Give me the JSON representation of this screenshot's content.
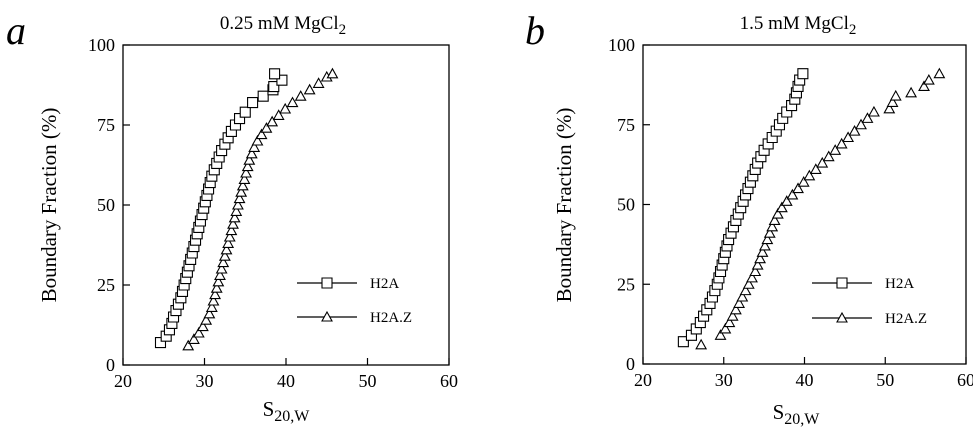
{
  "chart_data": [
    {
      "type": "scatter",
      "panel_letter": "a",
      "title": "0.25 mM MgCl2",
      "title_main": "0.25 mM MgCl",
      "title_sub": "2",
      "xlabel": "S20,W",
      "xlabel_main": "S",
      "xlabel_sub": "20,W",
      "ylabel": "Boundary Fraction (%)",
      "xlim": [
        20,
        60
      ],
      "ylim": [
        0,
        100
      ],
      "x_ticks": [
        20,
        30,
        40,
        50,
        60
      ],
      "y_ticks": [
        0,
        25,
        50,
        75,
        100
      ],
      "x_tick_labels": [
        "20",
        "30",
        "40",
        "50",
        "60"
      ],
      "y_tick_labels": [
        "0",
        "25",
        "50",
        "75",
        "100"
      ],
      "grid": false,
      "legend_position": "bottom-right",
      "series": [
        {
          "name": "H2A",
          "marker": "square",
          "points": [
            [
              24.6,
              7
            ],
            [
              25.3,
              9
            ],
            [
              25.7,
              11
            ],
            [
              26.0,
              13
            ],
            [
              26.2,
              15
            ],
            [
              26.5,
              17
            ],
            [
              26.8,
              19
            ],
            [
              27.1,
              21
            ],
            [
              27.3,
              23
            ],
            [
              27.5,
              25
            ],
            [
              27.7,
              27
            ],
            [
              27.9,
              29
            ],
            [
              28.1,
              31
            ],
            [
              28.3,
              33
            ],
            [
              28.5,
              35
            ],
            [
              28.7,
              37
            ],
            [
              28.9,
              39
            ],
            [
              29.1,
              41
            ],
            [
              29.3,
              43
            ],
            [
              29.5,
              45
            ],
            [
              29.7,
              47
            ],
            [
              29.9,
              49
            ],
            [
              30.1,
              51
            ],
            [
              30.3,
              53
            ],
            [
              30.5,
              55
            ],
            [
              30.7,
              57
            ],
            [
              30.9,
              59
            ],
            [
              31.2,
              61
            ],
            [
              31.5,
              63
            ],
            [
              31.8,
              65
            ],
            [
              32.1,
              67
            ],
            [
              32.5,
              69
            ],
            [
              32.9,
              71
            ],
            [
              33.3,
              73
            ],
            [
              33.8,
              75
            ],
            [
              34.3,
              77
            ],
            [
              35.0,
              79
            ],
            [
              35.9,
              82
            ],
            [
              37.2,
              84
            ],
            [
              38.4,
              86
            ],
            [
              38.5,
              87
            ],
            [
              39.5,
              89
            ],
            [
              38.6,
              91
            ]
          ]
        },
        {
          "name": "H2A.Z",
          "marker": "triangle",
          "points": [
            [
              28.0,
              6
            ],
            [
              28.7,
              8
            ],
            [
              29.3,
              10
            ],
            [
              29.8,
              12
            ],
            [
              30.2,
              14
            ],
            [
              30.6,
              16
            ],
            [
              30.9,
              18
            ],
            [
              31.1,
              20
            ],
            [
              31.3,
              22
            ],
            [
              31.5,
              24
            ],
            [
              31.7,
              26
            ],
            [
              31.9,
              28
            ],
            [
              32.1,
              30
            ],
            [
              32.3,
              32
            ],
            [
              32.5,
              34
            ],
            [
              32.7,
              36
            ],
            [
              32.9,
              38
            ],
            [
              33.1,
              40
            ],
            [
              33.3,
              42
            ],
            [
              33.5,
              44
            ],
            [
              33.7,
              46
            ],
            [
              33.9,
              48
            ],
            [
              34.1,
              50
            ],
            [
              34.3,
              52
            ],
            [
              34.5,
              54
            ],
            [
              34.7,
              56
            ],
            [
              34.9,
              58
            ],
            [
              35.1,
              60
            ],
            [
              35.3,
              62
            ],
            [
              35.5,
              64
            ],
            [
              35.8,
              66
            ],
            [
              36.1,
              68
            ],
            [
              36.5,
              70
            ],
            [
              37.0,
              72
            ],
            [
              37.6,
              74
            ],
            [
              38.3,
              76
            ],
            [
              39.1,
              78
            ],
            [
              39.9,
              80
            ],
            [
              40.8,
              82
            ],
            [
              41.8,
              84
            ],
            [
              42.9,
              86
            ],
            [
              44.0,
              88
            ],
            [
              45.0,
              90
            ],
            [
              45.7,
              91
            ]
          ]
        }
      ]
    },
    {
      "type": "scatter",
      "panel_letter": "b",
      "title": "1.5 mM MgCl2",
      "title_main": "1.5 mM MgCl",
      "title_sub": "2",
      "xlabel": "S20,W",
      "xlabel_main": "S",
      "xlabel_sub": "20,W",
      "ylabel": "Boundary Fraction (%)",
      "xlim": [
        20,
        60
      ],
      "ylim": [
        0,
        100
      ],
      "x_ticks": [
        20,
        30,
        40,
        50,
        60
      ],
      "y_ticks": [
        0,
        25,
        50,
        75,
        100
      ],
      "x_tick_labels": [
        "20",
        "30",
        "40",
        "50",
        "60"
      ],
      "y_tick_labels": [
        "0",
        "25",
        "50",
        "75",
        "100"
      ],
      "grid": false,
      "legend_position": "bottom-right",
      "series": [
        {
          "name": "H2A",
          "marker": "square",
          "points": [
            [
              25.0,
              7
            ],
            [
              26.0,
              9
            ],
            [
              26.6,
              11
            ],
            [
              27.1,
              13
            ],
            [
              27.5,
              15
            ],
            [
              27.9,
              17
            ],
            [
              28.3,
              19
            ],
            [
              28.6,
              21
            ],
            [
              28.9,
              23
            ],
            [
              29.2,
              25
            ],
            [
              29.4,
              27
            ],
            [
              29.6,
              29
            ],
            [
              29.8,
              31
            ],
            [
              30.0,
              33
            ],
            [
              30.2,
              35
            ],
            [
              30.4,
              37
            ],
            [
              30.6,
              39
            ],
            [
              30.9,
              41
            ],
            [
              31.2,
              43
            ],
            [
              31.5,
              45
            ],
            [
              31.8,
              47
            ],
            [
              32.1,
              49
            ],
            [
              32.4,
              51
            ],
            [
              32.7,
              53
            ],
            [
              33.0,
              55
            ],
            [
              33.3,
              57
            ],
            [
              33.6,
              59
            ],
            [
              33.9,
              61
            ],
            [
              34.2,
              63
            ],
            [
              34.6,
              65
            ],
            [
              35.0,
              67
            ],
            [
              35.5,
              69
            ],
            [
              36.0,
              71
            ],
            [
              36.5,
              73
            ],
            [
              36.9,
              75
            ],
            [
              37.3,
              77
            ],
            [
              37.8,
              79
            ],
            [
              38.4,
              81
            ],
            [
              38.8,
              83
            ],
            [
              39.0,
              85
            ],
            [
              39.2,
              87
            ],
            [
              39.4,
              89
            ],
            [
              39.8,
              91
            ]
          ]
        },
        {
          "name": "H2A.Z",
          "marker": "triangle",
          "points": [
            [
              27.2,
              6
            ],
            [
              29.6,
              9
            ],
            [
              30.2,
              11
            ],
            [
              30.7,
              13
            ],
            [
              31.1,
              15
            ],
            [
              31.5,
              17
            ],
            [
              31.9,
              19
            ],
            [
              32.3,
              21
            ],
            [
              32.7,
              23
            ],
            [
              33.1,
              25
            ],
            [
              33.5,
              27
            ],
            [
              33.9,
              29
            ],
            [
              34.2,
              31
            ],
            [
              34.5,
              33
            ],
            [
              34.8,
              35
            ],
            [
              35.1,
              37
            ],
            [
              35.4,
              39
            ],
            [
              35.7,
              41
            ],
            [
              36.0,
              43
            ],
            [
              36.3,
              45
            ],
            [
              36.7,
              47
            ],
            [
              37.2,
              49
            ],
            [
              37.8,
              51
            ],
            [
              38.5,
              53
            ],
            [
              39.2,
              55
            ],
            [
              39.9,
              57
            ],
            [
              40.6,
              59
            ],
            [
              41.4,
              61
            ],
            [
              42.2,
              63
            ],
            [
              43.0,
              65
            ],
            [
              43.8,
              67
            ],
            [
              44.6,
              69
            ],
            [
              45.4,
              71
            ],
            [
              46.2,
              73
            ],
            [
              47.0,
              75
            ],
            [
              47.8,
              77
            ],
            [
              48.6,
              79
            ],
            [
              50.5,
              80
            ],
            [
              50.9,
              82
            ],
            [
              51.3,
              84
            ],
            [
              53.2,
              85
            ],
            [
              54.8,
              87
            ],
            [
              55.4,
              89
            ],
            [
              56.7,
              91
            ]
          ]
        }
      ]
    }
  ]
}
